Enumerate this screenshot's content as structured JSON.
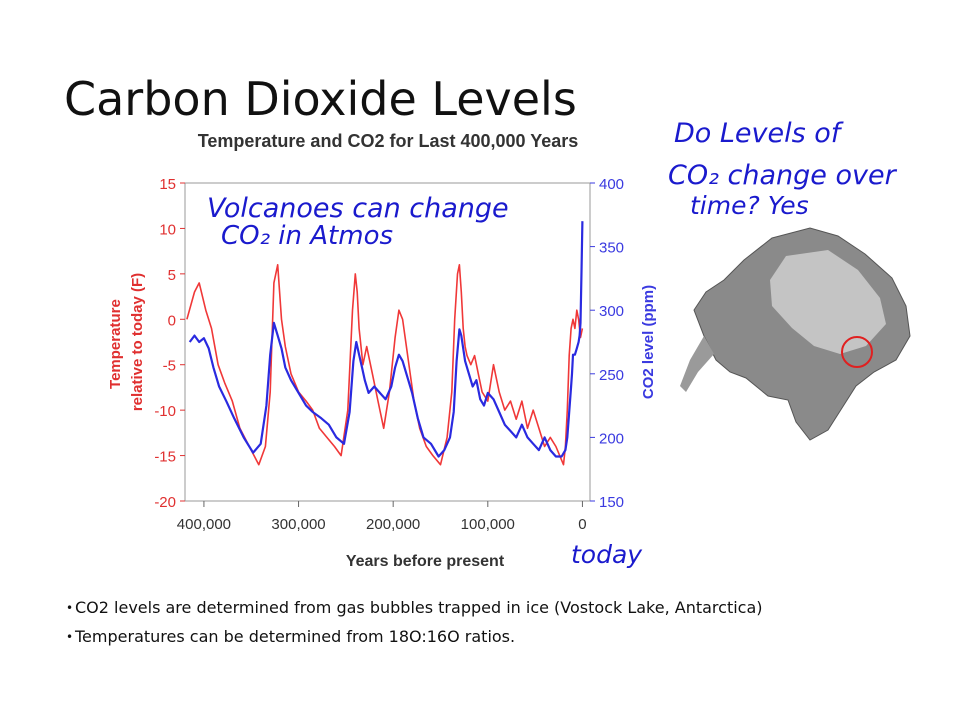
{
  "slide": {
    "title": "Carbon Dioxide Levels",
    "bullets": [
      "CO2 levels are determined from gas bubbles trapped in ice (Vostock Lake, Antarctica)",
      "Temperatures can be determined from 18O:16O ratios."
    ]
  },
  "annotations": {
    "volcano_line1": "Volcanoes can change",
    "volcano_line2": "CO₂ in Atmos",
    "question_line1": "Do Levels of",
    "question_line2": "CO₂ change over",
    "question_line3": "time? Yes",
    "today": "today",
    "ink_color": "#1a1acd"
  },
  "map": {
    "icon": "antarctica-relief-map",
    "marker_color": "#e02020"
  },
  "chart_data": {
    "type": "line",
    "title": "Temperature and CO2 for Last 400,000 Years",
    "xlabel": "Years before present",
    "ylabel_left": "Temperature relative to today (F)",
    "ylabel_right": "CO2 level (ppm)",
    "xlim": [
      420000,
      -8000
    ],
    "xticks": [
      400000,
      300000,
      200000,
      100000,
      0
    ],
    "xtick_labels": [
      "400,000",
      "300,000",
      "200,000",
      "100,000",
      "0"
    ],
    "ylim_left": [
      -20,
      15
    ],
    "yticks_left": [
      15,
      10,
      5,
      0,
      -5,
      -10,
      -15,
      -20
    ],
    "ylim_right": [
      150,
      400
    ],
    "yticks_right": [
      400,
      350,
      300,
      250,
      200,
      150
    ],
    "left_axis_color": "#e03030",
    "right_axis_color": "#3a3ae0",
    "series": [
      {
        "name": "Temperature",
        "axis": "left",
        "color": "#ee2222",
        "x": [
          418000,
          410000,
          405000,
          398000,
          392000,
          385000,
          378000,
          370000,
          362000,
          352000,
          342000,
          335000,
          330000,
          326000,
          322000,
          318000,
          314000,
          308000,
          300000,
          292000,
          285000,
          278000,
          270000,
          262000,
          255000,
          248000,
          243000,
          240000,
          238000,
          236000,
          234000,
          232000,
          228000,
          222000,
          216000,
          210000,
          204000,
          198000,
          194000,
          190000,
          186000,
          182000,
          178000,
          172000,
          165000,
          158000,
          150000,
          143000,
          138000,
          135000,
          132000,
          130000,
          128000,
          126000,
          124000,
          122000,
          118000,
          114000,
          110000,
          106000,
          100000,
          94000,
          88000,
          82000,
          76000,
          70000,
          64000,
          58000,
          52000,
          46000,
          40000,
          34000,
          28000,
          24000,
          20000,
          18000,
          16000,
          14000,
          12000,
          10000,
          8000,
          6000,
          4000,
          2000,
          0
        ],
        "values": [
          0,
          3,
          4,
          1,
          -1,
          -5,
          -7,
          -9,
          -12,
          -14,
          -16,
          -14,
          -8,
          4,
          6,
          0,
          -3,
          -6,
          -8,
          -9,
          -10,
          -12,
          -13,
          -14,
          -15,
          -10,
          1,
          5,
          3,
          -1,
          -3,
          -5,
          -3,
          -6,
          -9,
          -12,
          -8,
          -2,
          1,
          0,
          -3,
          -6,
          -9,
          -12,
          -14,
          -15,
          -16,
          -13,
          -8,
          0,
          5,
          6,
          3,
          -1,
          -3,
          -4,
          -5,
          -4,
          -6,
          -8,
          -9,
          -5,
          -8,
          -10,
          -9,
          -11,
          -9,
          -12,
          -10,
          -12,
          -14,
          -13,
          -14,
          -15,
          -16,
          -14,
          -10,
          -4,
          -1,
          0,
          -1,
          1,
          0,
          -2,
          -1
        ]
      },
      {
        "name": "CO2",
        "axis": "right",
        "color": "#2a2ae0",
        "x": [
          415000,
          410000,
          405000,
          400000,
          395000,
          390000,
          384000,
          376000,
          368000,
          358000,
          348000,
          340000,
          334000,
          330000,
          326000,
          322000,
          318000,
          314000,
          308000,
          300000,
          292000,
          285000,
          276000,
          268000,
          260000,
          252000,
          246000,
          242000,
          239000,
          236000,
          233000,
          230000,
          226000,
          220000,
          214000,
          208000,
          202000,
          198000,
          194000,
          190000,
          186000,
          180000,
          174000,
          168000,
          160000,
          152000,
          146000,
          140000,
          136000,
          133000,
          130000,
          128000,
          126000,
          124000,
          120000,
          116000,
          112000,
          108000,
          104000,
          100000,
          94000,
          88000,
          82000,
          76000,
          70000,
          64000,
          58000,
          52000,
          46000,
          40000,
          34000,
          28000,
          22000,
          18000,
          16000,
          14000,
          12000,
          11000,
          10000,
          8000,
          6000,
          4000,
          3000,
          2000,
          1000,
          0
        ],
        "values": [
          275,
          280,
          275,
          278,
          270,
          255,
          240,
          228,
          215,
          200,
          188,
          195,
          225,
          265,
          290,
          280,
          270,
          255,
          245,
          235,
          225,
          220,
          215,
          210,
          200,
          195,
          220,
          260,
          275,
          265,
          255,
          245,
          235,
          240,
          235,
          230,
          240,
          255,
          265,
          260,
          250,
          235,
          215,
          200,
          195,
          185,
          190,
          200,
          220,
          260,
          285,
          280,
          270,
          260,
          250,
          240,
          245,
          230,
          225,
          235,
          230,
          220,
          210,
          205,
          200,
          210,
          200,
          195,
          190,
          200,
          190,
          185,
          185,
          190,
          200,
          220,
          240,
          250,
          265,
          265,
          270,
          275,
          280,
          290,
          330,
          370
        ]
      }
    ]
  }
}
